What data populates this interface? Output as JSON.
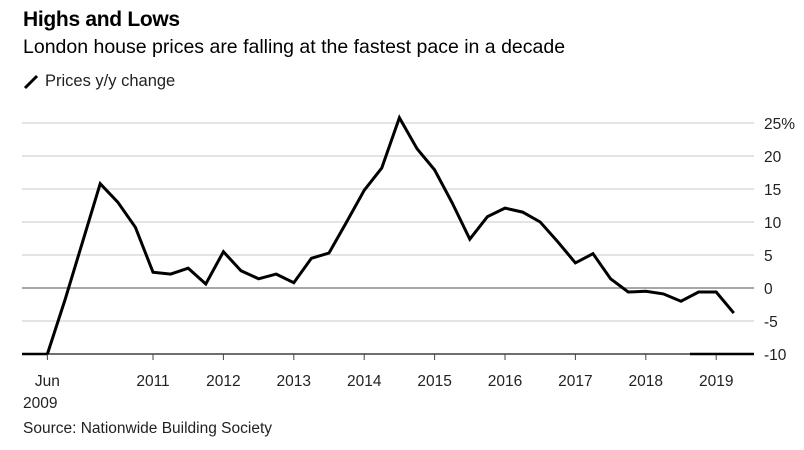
{
  "chart_data": {
    "type": "line",
    "title": "Highs and Lows",
    "subtitle": "London house prices are falling at the fastest pace in a decade",
    "legend": [
      {
        "name": "Prices y/y change",
        "color": "#000000"
      }
    ],
    "legend_placement": "top-left",
    "source": "Source: Nationwide Building Society",
    "xlabel": "",
    "ylabel": "",
    "ylim": [
      -10,
      25
    ],
    "yticks": [
      {
        "value": 25,
        "label": "25%"
      },
      {
        "value": 20,
        "label": "20"
      },
      {
        "value": 15,
        "label": "15"
      },
      {
        "value": 10,
        "label": "10"
      },
      {
        "value": 5,
        "label": "5"
      },
      {
        "value": 0,
        "label": "0"
      },
      {
        "value": -5,
        "label": "-5"
      },
      {
        "value": -10,
        "label": "-10"
      }
    ],
    "xlim": [
      2009.17,
      2019.6
    ],
    "xticks": [
      {
        "value": 2009.5,
        "label": [
          "Jun",
          "2009"
        ]
      },
      {
        "value": 2011,
        "label": [
          "2011"
        ]
      },
      {
        "value": 2012,
        "label": [
          "2012"
        ]
      },
      {
        "value": 2013,
        "label": [
          "2013"
        ]
      },
      {
        "value": 2014,
        "label": [
          "2014"
        ]
      },
      {
        "value": 2015,
        "label": [
          "2015"
        ]
      },
      {
        "value": 2016,
        "label": [
          "2016"
        ]
      },
      {
        "value": 2017,
        "label": [
          "2017"
        ]
      },
      {
        "value": 2018,
        "label": [
          "2018"
        ]
      },
      {
        "value": 2019,
        "label": [
          "2019"
        ]
      }
    ],
    "grid": true,
    "series": [
      {
        "name": "Prices y/y change",
        "color": "#000000",
        "x": [
          2009.5,
          2009.75,
          2010.0,
          2010.25,
          2010.5,
          2010.75,
          2011.0,
          2011.25,
          2011.5,
          2011.75,
          2012.0,
          2012.25,
          2012.5,
          2012.75,
          2013.0,
          2013.25,
          2013.5,
          2013.75,
          2014.0,
          2014.25,
          2014.5,
          2014.75,
          2015.0,
          2015.25,
          2015.5,
          2015.75,
          2016.0,
          2016.25,
          2016.5,
          2016.75,
          2017.0,
          2017.25,
          2017.5,
          2017.75,
          2018.0,
          2018.25,
          2018.5,
          2018.75,
          2019.0,
          2019.25
        ],
        "values": [
          -10,
          -1.8,
          7,
          15.8,
          13,
          9.2,
          2.4,
          2.1,
          3,
          0.6,
          5.5,
          2.6,
          1.4,
          2.1,
          0.8,
          4.5,
          5.3,
          10,
          14.8,
          18.2,
          25.8,
          21.1,
          17.9,
          12.9,
          7.4,
          10.8,
          12.1,
          11.5,
          10,
          7,
          3.8,
          5.2,
          1.4,
          -0.6,
          -0.5,
          -0.9,
          -2,
          -0.6,
          -0.6,
          -3.8
        ]
      }
    ]
  }
}
